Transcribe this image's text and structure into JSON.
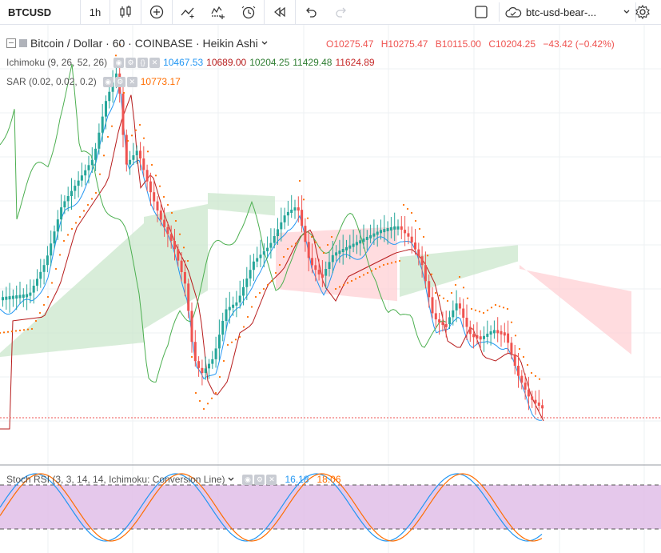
{
  "toolbar": {
    "symbol": "BTCUSD",
    "interval": "1h",
    "layout_name": "btc-usd-bear-...",
    "icons": [
      "candles-icon",
      "add-indicator-icon",
      "line-tool-icon",
      "fib-tool-icon",
      "alert-icon",
      "replay-icon",
      "undo-icon",
      "redo-icon",
      "fullscreen-icon",
      "cloud-icon",
      "chevron-down-icon",
      "gear-icon"
    ]
  },
  "legend": {
    "title": "Bitcoin / Dollar · 60 · COINBASE · Heikin Ashi",
    "o": "O10275.47",
    "h": "H10275.47",
    "l": "B10115.00",
    "c": "C10204.25",
    "change": "−43.42 (−0.42%)"
  },
  "ichimoku": {
    "label": "Ichimoku (9, 26, 52, 26)",
    "v1": "10467.53",
    "v2": "10689.00",
    "v3": "10204.25",
    "v4": "11429.48",
    "v5": "11624.89"
  },
  "sar": {
    "label": "SAR (0.02, 0.02, 0.2)",
    "value": "10773.17"
  },
  "stoch": {
    "label": "Stoch RSI (3, 3, 14, 14, Ichimoku: Conversion Line)",
    "k": "16.18",
    "d": "18.06"
  },
  "colors": {
    "up": "#26a69a",
    "down": "#ef5350",
    "tenkan": "#2196f3",
    "kijun": "#b71c1c",
    "lagging": "#4caf50",
    "cloud_green": "#c8e6c9",
    "cloud_red": "#ffcdd2",
    "sar": "#ff6d00",
    "stoch_band": "#e1bee7"
  }
}
